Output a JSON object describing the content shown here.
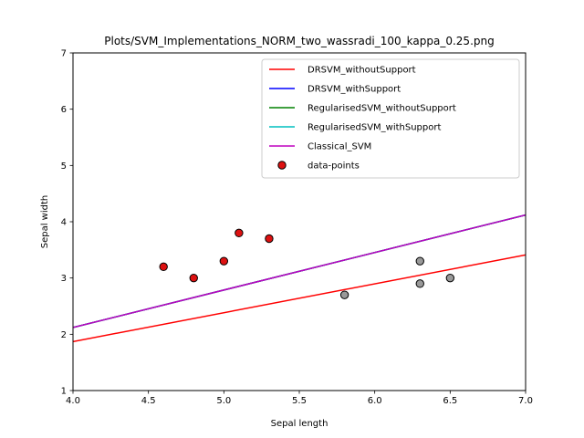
{
  "chart_data": {
    "type": "scatter",
    "title": "Plots/SVM_Implementations_NORM_two_wassradi_100_kappa_0.25.png",
    "xlabel": "Sepal length",
    "ylabel": "Sepal width",
    "xlim": [
      4.0,
      7.0
    ],
    "ylim": [
      1,
      7
    ],
    "xticks": [
      "4.0",
      "4.5",
      "5.0",
      "5.5",
      "6.0",
      "6.5",
      "7.0"
    ],
    "yticks": [
      "1",
      "2",
      "3",
      "4",
      "5",
      "6",
      "7"
    ],
    "grid": false,
    "legend_position": "upper-right",
    "lines": [
      {
        "name": "DRSVM_withoutSupport",
        "color": "#ff0000",
        "x": [
          4.0,
          7.0
        ],
        "y": [
          1.87,
          3.41
        ]
      },
      {
        "name": "DRSVM_withSupport",
        "color": "#0000ff",
        "x": [
          4.0,
          7.0
        ],
        "y": [
          2.12,
          4.12
        ]
      },
      {
        "name": "RegularisedSVM_withoutSupport",
        "color": "#008000",
        "x": [
          4.0,
          7.0
        ],
        "y": [
          2.12,
          4.12
        ]
      },
      {
        "name": "RegularisedSVM_withSupport",
        "color": "#00bfbf",
        "x": [
          4.0,
          7.0
        ],
        "y": [
          2.12,
          4.12
        ]
      },
      {
        "name": "Classical_SVM",
        "color": "#bf00bf",
        "x": [
          4.0,
          7.0
        ],
        "y": [
          2.12,
          4.12
        ]
      }
    ],
    "points": {
      "name": "data-points",
      "legend_color": "#dd1111",
      "groups": [
        {
          "color": "#dd1111",
          "x": [
            4.6,
            4.8,
            5.0,
            5.1,
            5.3
          ],
          "y": [
            3.2,
            3.0,
            3.3,
            3.8,
            3.7
          ]
        },
        {
          "color": "#999999",
          "x": [
            5.8,
            6.3,
            6.3,
            6.5
          ],
          "y": [
            2.7,
            3.3,
            2.9,
            3.0
          ]
        }
      ]
    }
  }
}
